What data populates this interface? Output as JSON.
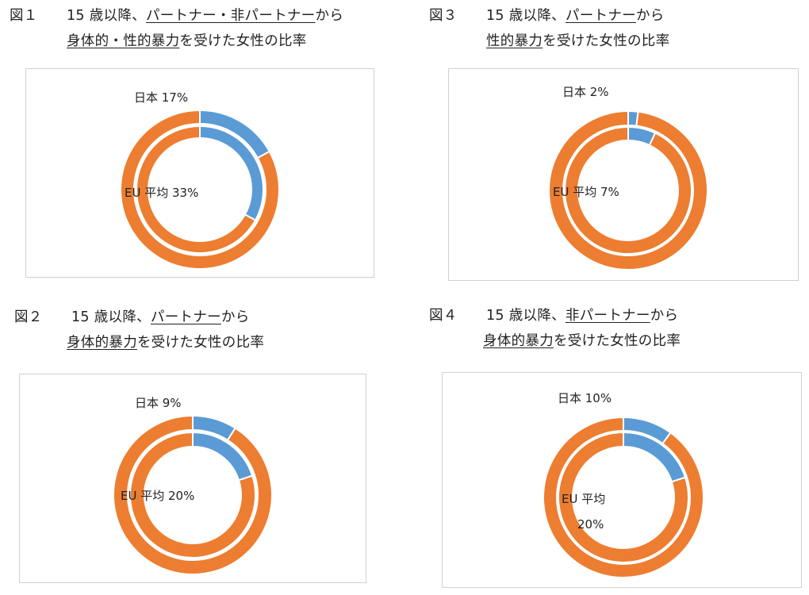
{
  "figures": [
    {
      "number": "図１",
      "title_line1_pre": "15 歳以降、",
      "title_line1_u": "パートナー・非パートナー",
      "title_line1_post": "から",
      "title_line2_u": "身体的・性的暴力",
      "title_line2_post": "を受けた女性の比率",
      "label_japan": "日本 17%",
      "label_eu": "EU 平均 33%",
      "label_eu_line2": ""
    },
    {
      "number": "図３",
      "title_line1_pre": "15 歳以降、",
      "title_line1_u": "パートナー",
      "title_line1_post": "から",
      "title_line2_u": "性的暴力",
      "title_line2_post": "を受けた女性の比率",
      "label_japan": "日本 2%",
      "label_eu": "EU 平均 7%",
      "label_eu_line2": ""
    },
    {
      "number": "図２",
      "title_line1_pre": "15 歳以降、",
      "title_line1_u": "パートナー",
      "title_line1_post": "から",
      "title_line2_u": "身体的暴力",
      "title_line2_post": "を受けた女性の比率",
      "label_japan": "日本 9%",
      "label_eu": "EU 平均 20%",
      "label_eu_line2": ""
    },
    {
      "number": "図４",
      "title_line1_pre": "15 歳以降、",
      "title_line1_u": "非パートナー",
      "title_line1_post": "から",
      "title_line2_u": "身体的暴力",
      "title_line2_post": "を受けた女性の比率",
      "label_japan": "日本 10%",
      "label_eu": "EU 平均",
      "label_eu_line2": "20%"
    }
  ],
  "chart_data": [
    {
      "type": "pie",
      "figure": "図１",
      "series": [
        {
          "name": "日本",
          "values": [
            17,
            83
          ]
        },
        {
          "name": "EU 平均",
          "values": [
            33,
            67
          ]
        }
      ],
      "colors": [
        "#5B9BD5",
        "#ED7D31"
      ]
    },
    {
      "type": "pie",
      "figure": "図３",
      "series": [
        {
          "name": "日本",
          "values": [
            2,
            98
          ]
        },
        {
          "name": "EU 平均",
          "values": [
            7,
            93
          ]
        }
      ],
      "colors": [
        "#5B9BD5",
        "#ED7D31"
      ]
    },
    {
      "type": "pie",
      "figure": "図２",
      "series": [
        {
          "name": "日本",
          "values": [
            9,
            91
          ]
        },
        {
          "name": "EU 平均",
          "values": [
            20,
            80
          ]
        }
      ],
      "colors": [
        "#5B9BD5",
        "#ED7D31"
      ]
    },
    {
      "type": "pie",
      "figure": "図４",
      "series": [
        {
          "name": "日本",
          "values": [
            10,
            90
          ]
        },
        {
          "name": "EU 平均",
          "values": [
            20,
            80
          ]
        }
      ],
      "colors": [
        "#5B9BD5",
        "#ED7D31"
      ]
    }
  ]
}
